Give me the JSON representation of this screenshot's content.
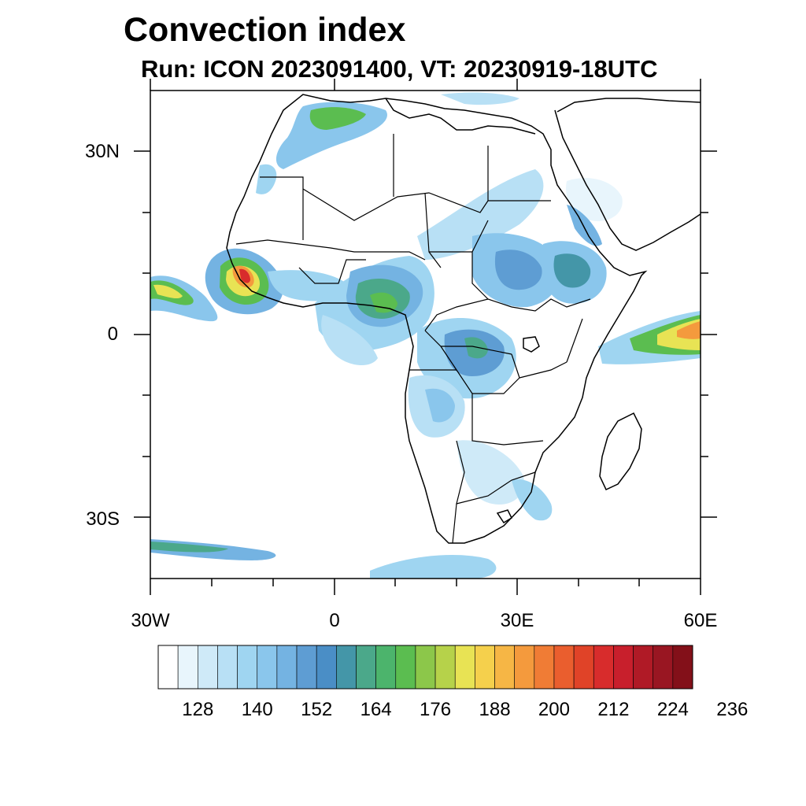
{
  "title": "Convection index",
  "subtitle": "Run: ICON 2023091400,  VT: 20230919-18UTC",
  "map": {
    "region": "Africa",
    "projection": "cylindrical equidistant",
    "lon_range": [
      -30,
      60
    ],
    "lat_range": [
      -40,
      40
    ],
    "x_tick_labels": [
      "30W",
      "0",
      "30E",
      "60E"
    ],
    "y_tick_labels": [
      "30N",
      "0",
      "30S"
    ],
    "field": "Convection index",
    "coastline_color": "#000000"
  },
  "colorbar": {
    "tick_labels": [
      "128",
      "140",
      "152",
      "164",
      "176",
      "188",
      "200",
      "212",
      "224",
      "236"
    ],
    "colors": [
      "#ffffff",
      "#e8f5fc",
      "#cfeaf8",
      "#b8e0f5",
      "#9fd5f1",
      "#8ac6ec",
      "#74b3e2",
      "#5e9dd3",
      "#4a8ec6",
      "#4496a8",
      "#4ba88a",
      "#4cb46c",
      "#5bbd50",
      "#8cc74a",
      "#b6d24a",
      "#e8e354",
      "#f5d04c",
      "#f6b645",
      "#f49a3d",
      "#f07c35",
      "#ea5e2e",
      "#e04328",
      "#d82c2c",
      "#c81f2c",
      "#b01a26",
      "#991622",
      "#831019"
    ]
  }
}
